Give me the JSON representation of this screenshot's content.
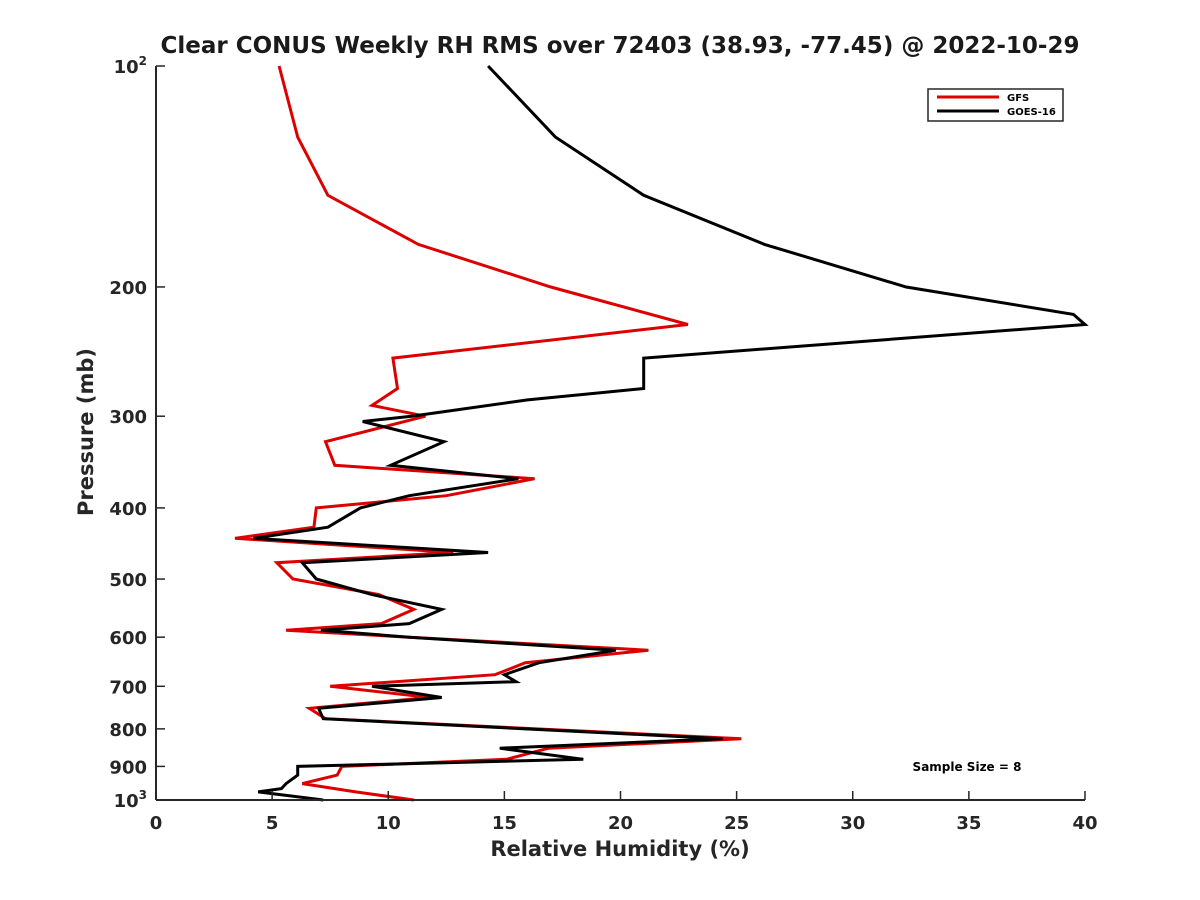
{
  "chart_data": {
    "type": "line",
    "title": "Clear CONUS Weekly RH RMS over 72403 (38.93, -77.45) @ 2022-10-29",
    "xlabel": "Relative Humidity (%)",
    "ylabel": "Pressure (mb)",
    "xlim": [
      0,
      40
    ],
    "ylim": [
      100,
      1000
    ],
    "y_scale": "log",
    "y_reversed": true,
    "grid": false,
    "legend_position": "top-right",
    "x_ticks": [
      "0",
      "5",
      "10",
      "15",
      "20",
      "25",
      "30",
      "35",
      "40"
    ],
    "y_ticks": [
      {
        "value": 100,
        "base": "10",
        "exp": "2"
      },
      {
        "value": 200,
        "label": "200"
      },
      {
        "value": 300,
        "label": "300"
      },
      {
        "value": 400,
        "label": "400"
      },
      {
        "value": 500,
        "label": "500"
      },
      {
        "value": 600,
        "label": "600"
      },
      {
        "value": 700,
        "label": "700"
      },
      {
        "value": 800,
        "label": "800"
      },
      {
        "value": 900,
        "label": "900"
      },
      {
        "value": 1000,
        "base": "10",
        "exp": "3"
      }
    ],
    "annotation": "Sample Size = 8",
    "series": [
      {
        "name": "GFS",
        "color": "#dd0000",
        "points": [
          [
            5.3,
            100
          ],
          [
            6.1,
            125
          ],
          [
            7.4,
            150
          ],
          [
            11.3,
            175
          ],
          [
            17.0,
            200
          ],
          [
            22.9,
            225
          ],
          [
            10.2,
            250
          ],
          [
            10.4,
            275
          ],
          [
            9.3,
            290
          ],
          [
            11.6,
            300
          ],
          [
            7.3,
            325
          ],
          [
            7.7,
            350
          ],
          [
            16.3,
            365
          ],
          [
            12.5,
            385
          ],
          [
            6.9,
            400
          ],
          [
            6.8,
            425
          ],
          [
            3.4,
            440
          ],
          [
            12.8,
            460
          ],
          [
            5.2,
            475
          ],
          [
            5.9,
            500
          ],
          [
            9.6,
            525
          ],
          [
            11.1,
            550
          ],
          [
            9.7,
            575
          ],
          [
            5.6,
            587
          ],
          [
            10.9,
            600
          ],
          [
            21.2,
            625
          ],
          [
            15.9,
            650
          ],
          [
            14.6,
            675
          ],
          [
            7.5,
            700
          ],
          [
            11.8,
            725
          ],
          [
            6.6,
            750
          ],
          [
            7.3,
            775
          ],
          [
            25.2,
            825
          ],
          [
            16.9,
            850
          ],
          [
            15.1,
            880
          ],
          [
            8.0,
            900
          ],
          [
            7.8,
            925
          ],
          [
            6.3,
            950
          ],
          [
            8.6,
            975
          ],
          [
            11.1,
            1000
          ]
        ]
      },
      {
        "name": "GOES-16",
        "color": "#000000",
        "points": [
          [
            14.3,
            100
          ],
          [
            17.2,
            125
          ],
          [
            21.0,
            150
          ],
          [
            26.2,
            175
          ],
          [
            32.3,
            200
          ],
          [
            39.5,
            218
          ],
          [
            40.0,
            225
          ],
          [
            21.0,
            250
          ],
          [
            21.0,
            275
          ],
          [
            16.0,
            285
          ],
          [
            11.0,
            300
          ],
          [
            8.9,
            305
          ],
          [
            12.4,
            325
          ],
          [
            10.1,
            350
          ],
          [
            15.6,
            365
          ],
          [
            10.9,
            385
          ],
          [
            8.8,
            400
          ],
          [
            7.4,
            425
          ],
          [
            4.2,
            440
          ],
          [
            14.3,
            460
          ],
          [
            6.3,
            475
          ],
          [
            6.9,
            500
          ],
          [
            9.3,
            525
          ],
          [
            12.3,
            550
          ],
          [
            10.9,
            575
          ],
          [
            7.1,
            587
          ],
          [
            10.9,
            600
          ],
          [
            19.8,
            625
          ],
          [
            16.5,
            650
          ],
          [
            15.0,
            675
          ],
          [
            15.5,
            690
          ],
          [
            9.3,
            700
          ],
          [
            12.3,
            725
          ],
          [
            7.0,
            750
          ],
          [
            7.2,
            775
          ],
          [
            24.4,
            825
          ],
          [
            14.8,
            850
          ],
          [
            18.4,
            880
          ],
          [
            6.1,
            900
          ],
          [
            6.1,
            925
          ],
          [
            5.6,
            950
          ],
          [
            5.4,
            965
          ],
          [
            4.4,
            975
          ],
          [
            7.2,
            1000
          ]
        ]
      }
    ]
  }
}
